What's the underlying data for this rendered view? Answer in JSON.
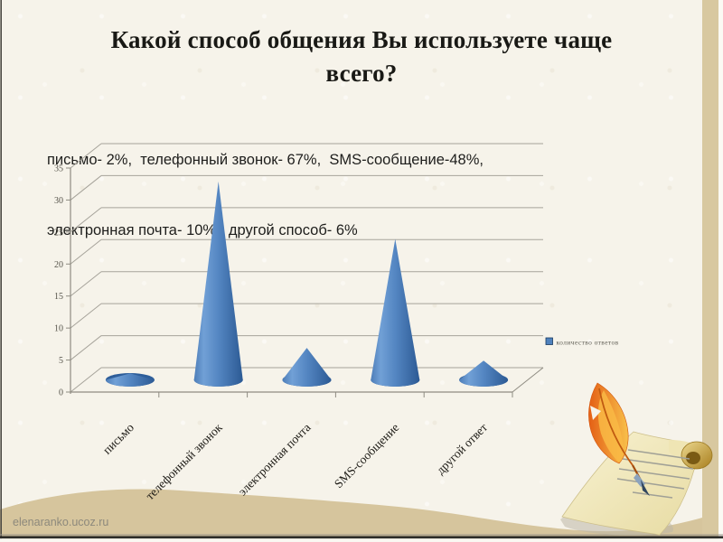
{
  "slide": {
    "title": "Какой способ общения Вы используете чаще всего?",
    "subtitle_lines": [
      "письмо- 2%,  телефонный звонок- 67%,  SMS-сообщение-48%,",
      "электронная почта- 10%,  другой способ- 6%"
    ],
    "watermark": "elenaranko.ucoz.ru"
  },
  "chart_data": {
    "type": "bar",
    "subtype": "3d-cone",
    "title": "",
    "categories": [
      "письмо",
      "телефонный звонок",
      "электронная почта",
      "SMS-сообщение",
      "другой ответ"
    ],
    "series": [
      {
        "name": "количество ответов",
        "values": [
          1,
          31,
          5,
          22,
          3
        ]
      }
    ],
    "legend": [
      "количество ответов"
    ],
    "legend_position": "right",
    "xlabel": "",
    "ylabel": "",
    "ylim": [
      0,
      35
    ],
    "ytick_step": 5,
    "grid": true,
    "bar_color": "#4f81bd"
  },
  "colors": {
    "slide_bg": "#f6f3ea",
    "tan_accent": "#d7c69e",
    "cone_blue": "#4f81bd",
    "gridline": "#a6a39a"
  }
}
